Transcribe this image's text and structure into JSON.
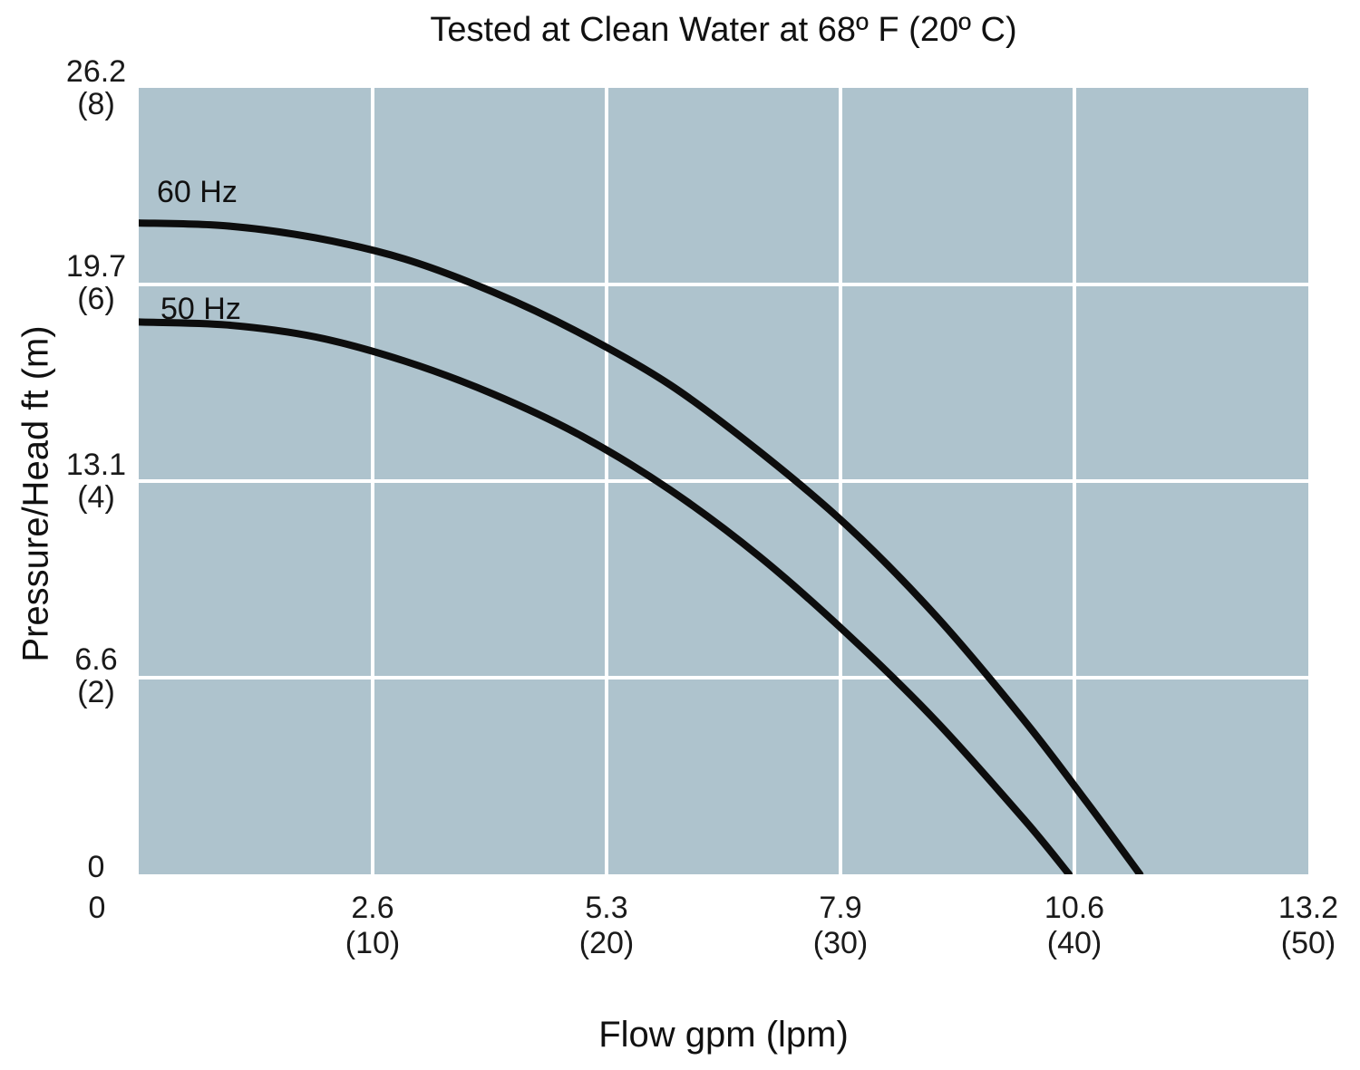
{
  "title": "Tested at Clean Water at 68º F (20º C)",
  "x_axis": {
    "label": "Flow gpm (lpm)",
    "ticks": [
      {
        "line1": "0",
        "line2": "",
        "lpm": 0
      },
      {
        "line1": "2.6",
        "line2": "(10)",
        "lpm": 10
      },
      {
        "line1": "5.3",
        "line2": "(20)",
        "lpm": 20
      },
      {
        "line1": "7.9",
        "line2": "(30)",
        "lpm": 30
      },
      {
        "line1": "10.6",
        "line2": "(40)",
        "lpm": 40
      },
      {
        "line1": "13.2",
        "line2": "(50)",
        "lpm": 50
      }
    ]
  },
  "y_axis": {
    "label": "Pressure/Head ft (m)",
    "ticks": [
      {
        "line1": "26.2",
        "line2": "(8)",
        "ft": 26.2
      },
      {
        "line1": "19.7",
        "line2": "(6)",
        "ft": 19.7
      },
      {
        "line1": "13.1",
        "line2": "(4)",
        "ft": 13.1
      },
      {
        "line1": "6.6",
        "line2": "(2)",
        "ft": 6.6
      },
      {
        "line1": "0",
        "line2": "",
        "ft": 0
      }
    ]
  },
  "colors": {
    "plot_bg": "#aec3cd",
    "grid": "#ffffff",
    "curve": "#0d0d0d",
    "text": "#1a1a1a"
  },
  "chart_data": {
    "type": "line",
    "title": "Tested at Clean Water at 68º F (20º C)",
    "xlabel": "Flow gpm (lpm)",
    "ylabel": "Pressure/Head ft (m)",
    "xlim_gpm": [
      0,
      13.2
    ],
    "ylim_ft": [
      0,
      26.2
    ],
    "x_ticks_gpm": [
      0,
      2.6,
      5.3,
      7.9,
      10.6,
      13.2
    ],
    "x_ticks_lpm": [
      0,
      10,
      20,
      30,
      40,
      50
    ],
    "y_ticks_ft": [
      0,
      6.6,
      13.1,
      19.7,
      26.2
    ],
    "y_ticks_m": [
      0,
      2,
      4,
      6,
      8
    ],
    "grid": true,
    "legend_position": "inline-labels-top-left",
    "series": [
      {
        "name": "60 Hz",
        "shutoff_head_ft": 21.7,
        "max_flow_gpm": 11.3,
        "points_gpm_ft": [
          [
            0,
            21.7
          ],
          [
            1,
            21.6
          ],
          [
            2,
            21.2
          ],
          [
            3,
            20.5
          ],
          [
            4,
            19.4
          ],
          [
            5,
            18.0
          ],
          [
            6,
            16.3
          ],
          [
            7,
            14.1
          ],
          [
            8,
            11.6
          ],
          [
            9,
            8.6
          ],
          [
            10,
            5.1
          ],
          [
            10.7,
            2.4
          ],
          [
            11.3,
            0
          ]
        ]
      },
      {
        "name": "50 Hz",
        "shutoff_head_ft": 18.4,
        "max_flow_gpm": 10.5,
        "points_gpm_ft": [
          [
            0,
            18.4
          ],
          [
            1,
            18.3
          ],
          [
            2,
            17.9
          ],
          [
            3,
            17.1
          ],
          [
            4,
            16.0
          ],
          [
            5,
            14.6
          ],
          [
            6,
            12.8
          ],
          [
            7,
            10.6
          ],
          [
            8,
            8.0
          ],
          [
            9,
            5.1
          ],
          [
            10,
            1.8
          ],
          [
            10.5,
            0
          ]
        ]
      }
    ]
  }
}
